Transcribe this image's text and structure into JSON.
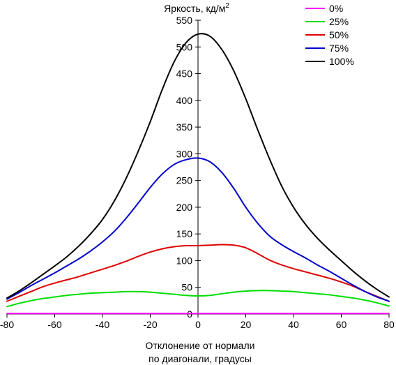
{
  "chart_data": {
    "type": "line",
    "title": "",
    "ylabel": "Яркость, кд/м",
    "ylabel_sup": "2",
    "xlabel_lines": [
      "Отклонение от нормали",
      "по диагонали, градусы"
    ],
    "xlim": [
      -80,
      80
    ],
    "ylim": [
      0,
      550
    ],
    "xticks": [
      -80,
      -60,
      -40,
      -20,
      0,
      20,
      40,
      60,
      80
    ],
    "yticks": [
      0,
      50,
      100,
      150,
      200,
      250,
      300,
      350,
      400,
      450,
      500,
      550
    ],
    "grid": false,
    "legend_position": "top-right",
    "series": [
      {
        "name": "0%",
        "color": "#ff00ff",
        "x": [
          -80,
          -60,
          -40,
          -20,
          0,
          20,
          40,
          60,
          80
        ],
        "y": [
          1,
          1,
          1,
          1,
          1,
          1,
          1,
          1,
          1
        ]
      },
      {
        "name": "25%",
        "color": "#00dd00",
        "x": [
          -80,
          -75,
          -70,
          -65,
          -60,
          -55,
          -50,
          -45,
          -40,
          -35,
          -30,
          -25,
          -20,
          -15,
          -10,
          -5,
          0,
          5,
          10,
          15,
          20,
          25,
          30,
          35,
          40,
          45,
          50,
          55,
          60,
          65,
          70,
          75,
          80
        ],
        "y": [
          14,
          20,
          25,
          29,
          32,
          35,
          37,
          39,
          40,
          41,
          42,
          42,
          41,
          39,
          37,
          35,
          34,
          35,
          38,
          41,
          43,
          44,
          44,
          43,
          42,
          40,
          38,
          36,
          33,
          30,
          26,
          21,
          15
        ]
      },
      {
        "name": "50%",
        "color": "#dd0000",
        "x": [
          -80,
          -75,
          -70,
          -65,
          -60,
          -55,
          -50,
          -45,
          -40,
          -35,
          -30,
          -25,
          -20,
          -15,
          -10,
          -5,
          0,
          5,
          10,
          15,
          20,
          25,
          30,
          35,
          40,
          45,
          50,
          55,
          60,
          65,
          70,
          75,
          80
        ],
        "y": [
          24,
          33,
          42,
          51,
          58,
          64,
          70,
          77,
          84,
          91,
          99,
          108,
          116,
          122,
          126,
          128,
          128,
          129,
          130,
          129,
          124,
          113,
          101,
          92,
          85,
          79,
          73,
          67,
          60,
          52,
          42,
          33,
          24
        ]
      },
      {
        "name": "75%",
        "color": "#0000cc",
        "x": [
          -80,
          -75,
          -70,
          -65,
          -60,
          -55,
          -50,
          -45,
          -40,
          -35,
          -30,
          -25,
          -20,
          -15,
          -10,
          -5,
          0,
          5,
          10,
          15,
          20,
          25,
          30,
          35,
          40,
          45,
          50,
          55,
          60,
          65,
          70,
          75,
          80
        ],
        "y": [
          28,
          40,
          53,
          65,
          77,
          90,
          103,
          118,
          135,
          155,
          180,
          208,
          237,
          262,
          280,
          289,
          292,
          285,
          265,
          235,
          200,
          170,
          146,
          130,
          117,
          105,
          92,
          80,
          67,
          54,
          42,
          32,
          24
        ]
      },
      {
        "name": "100%",
        "color": "#000000",
        "x": [
          -80,
          -75,
          -70,
          -65,
          -60,
          -55,
          -50,
          -45,
          -40,
          -35,
          -30,
          -25,
          -20,
          -15,
          -10,
          -5,
          0,
          5,
          10,
          15,
          20,
          25,
          30,
          35,
          40,
          45,
          50,
          55,
          60,
          65,
          70,
          75,
          80
        ],
        "y": [
          30,
          43,
          58,
          74,
          90,
          107,
          127,
          150,
          177,
          212,
          255,
          305,
          360,
          420,
          472,
          508,
          524,
          520,
          495,
          455,
          403,
          345,
          290,
          240,
          200,
          168,
          142,
          120,
          100,
          80,
          62,
          46,
          32
        ]
      }
    ]
  }
}
